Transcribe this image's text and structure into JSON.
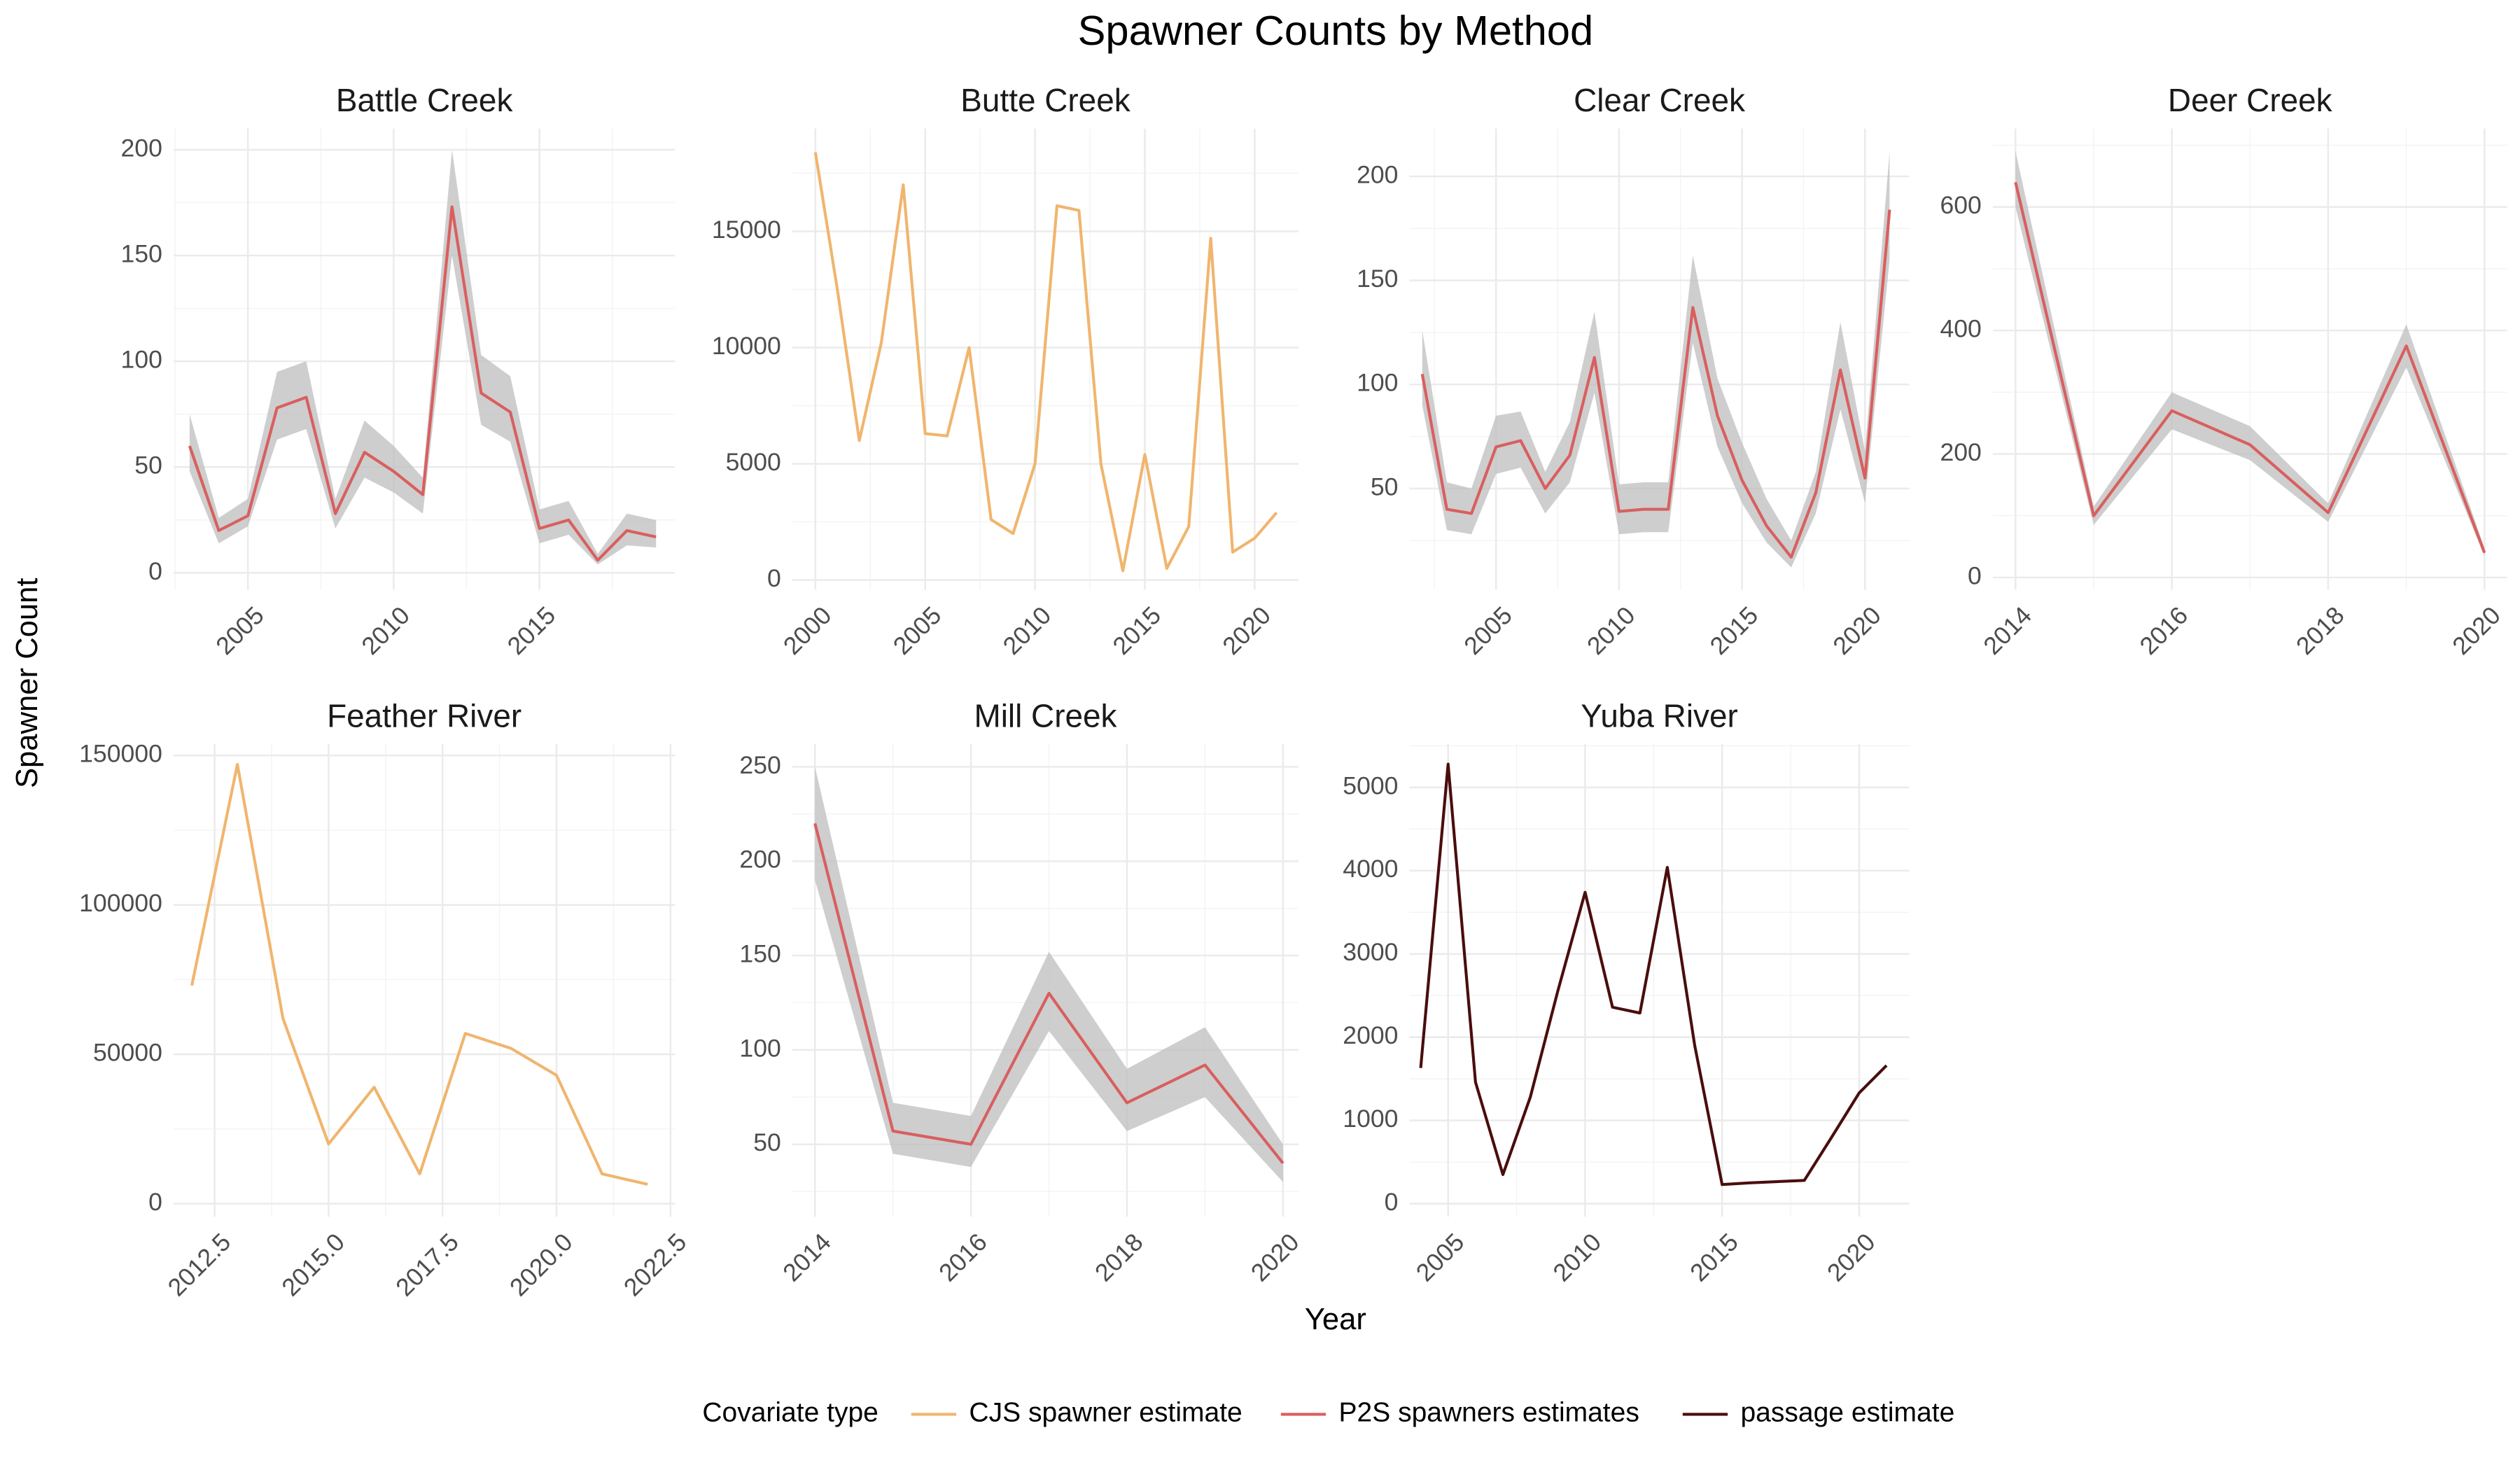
{
  "title": "Spawner Counts by Method",
  "x_label": "Year",
  "y_label": "Spawner Count",
  "legend": {
    "title": "Covariate type",
    "items": [
      {
        "name": "CJS spawner estimate",
        "color": "#f0b56e"
      },
      {
        "name": "P2S spawners estimates",
        "color": "#d95f5f"
      },
      {
        "name": "passage estimate",
        "color": "#4a0d0d"
      }
    ]
  },
  "chart_data": [
    {
      "type": "line",
      "title": "Battle Creek",
      "x": [
        2003,
        2004,
        2005,
        2006,
        2007,
        2008,
        2009,
        2010,
        2011,
        2012,
        2013,
        2014,
        2015,
        2016,
        2017,
        2018,
        2019
      ],
      "series": [
        {
          "name": "P2S spawners estimates",
          "color": "#d95f5f",
          "band_color": "#bdbdbd",
          "values": [
            60,
            20,
            27,
            78,
            83,
            28,
            57,
            48,
            37,
            173,
            85,
            76,
            21,
            25,
            6,
            20,
            17
          ],
          "lower": [
            48,
            14,
            22,
            63,
            68,
            21,
            45,
            38,
            28,
            150,
            70,
            62,
            14,
            18,
            4,
            13,
            12
          ],
          "upper": [
            75,
            26,
            35,
            95,
            100,
            35,
            72,
            60,
            45,
            200,
            103,
            93,
            30,
            34,
            9,
            28,
            25
          ]
        }
      ],
      "xlim": [
        2002.45,
        2019.65
      ],
      "ylim": [
        -8,
        210
      ],
      "xticks": [
        2005,
        2010,
        2015
      ],
      "yticks": [
        0,
        50,
        100,
        150,
        200
      ]
    },
    {
      "type": "line",
      "title": "Butte Creek",
      "x": [
        2000,
        2001,
        2002,
        2003,
        2004,
        2005,
        2006,
        2007,
        2008,
        2009,
        2010,
        2011,
        2012,
        2013,
        2014,
        2015,
        2016,
        2017,
        2018,
        2019,
        2020,
        2021
      ],
      "series": [
        {
          "name": "CJS spawner estimate",
          "color": "#f0b56e",
          "values": [
            18400,
            12500,
            6000,
            10200,
            17000,
            6300,
            6200,
            10000,
            2600,
            2000,
            5000,
            16100,
            15900,
            5000,
            400,
            5400,
            500,
            2300,
            14700,
            1200,
            1800,
            2900
          ]
        }
      ],
      "xlim": [
        1998.95,
        2022
      ],
      "ylim": [
        -420,
        19420
      ],
      "xticks": [
        2000,
        2005,
        2010,
        2015,
        2020
      ],
      "yticks": [
        0,
        5000,
        10000,
        15000
      ]
    },
    {
      "type": "line",
      "title": "Clear Creek",
      "x": [
        2002,
        2003,
        2004,
        2005,
        2006,
        2007,
        2008,
        2009,
        2010,
        2011,
        2012,
        2013,
        2014,
        2015,
        2016,
        2017,
        2018,
        2019,
        2020,
        2021
      ],
      "series": [
        {
          "name": "P2S spawners estimates",
          "color": "#d95f5f",
          "band_color": "#bdbdbd",
          "values": [
            105,
            40,
            38,
            70,
            73,
            50,
            66,
            113,
            39,
            40,
            40,
            137,
            85,
            54,
            32,
            17,
            48,
            107,
            55,
            184
          ],
          "lower": [
            90,
            30,
            28,
            57,
            60,
            38,
            53,
            96,
            28,
            29,
            29,
            120,
            70,
            43,
            24,
            12,
            38,
            88,
            43,
            160
          ],
          "upper": [
            126,
            53,
            50,
            85,
            87,
            58,
            82,
            135,
            52,
            53,
            53,
            162,
            103,
            72,
            45,
            25,
            58,
            130,
            68,
            212
          ]
        }
      ],
      "xlim": [
        2001.48,
        2021.8
      ],
      "ylim": [
        1.3,
        223
      ],
      "xticks": [
        2005,
        2010,
        2015,
        2020
      ],
      "yticks": [
        50,
        100,
        150,
        200
      ]
    },
    {
      "type": "line",
      "title": "Deer Creek",
      "x": [
        2014,
        2015,
        2016,
        2017,
        2018,
        2019,
        2020
      ],
      "series": [
        {
          "name": "P2S spawners estimates",
          "color": "#d95f5f",
          "band_color": "#bdbdbd",
          "values": [
            640,
            100,
            270,
            215,
            105,
            375,
            40
          ],
          "lower": [
            600,
            85,
            240,
            190,
            90,
            340,
            35
          ],
          "upper": [
            690,
            115,
            300,
            245,
            120,
            410,
            48
          ]
        }
      ],
      "xlim": [
        2013.71,
        2020.29
      ],
      "ylim": [
        -20,
        727
      ],
      "xticks": [
        2014,
        2016,
        2018,
        2020
      ],
      "yticks": [
        0,
        200,
        400,
        600
      ]
    },
    {
      "type": "line",
      "title": "Feather River",
      "x": [
        2012,
        2013,
        2014,
        2015,
        2016,
        2017,
        2018,
        2019,
        2020,
        2021,
        2022
      ],
      "series": [
        {
          "name": "CJS spawner estimate",
          "color": "#f0b56e",
          "values": [
            73000,
            147000,
            62000,
            20000,
            39000,
            10000,
            57000,
            52000,
            43000,
            10000,
            6500
          ]
        }
      ],
      "xlim": [
        2011.6,
        2022.6
      ],
      "ylim": [
        -4300,
        153800
      ],
      "xticks": [
        2012.5,
        {
          "value": 2015,
          "label": "2015.0"
        },
        2017.5,
        {
          "value": 2020,
          "label": "2020.0"
        },
        2022.5
      ],
      "yticks": [
        0,
        50000,
        100000,
        150000
      ]
    },
    {
      "type": "line",
      "title": "Mill Creek",
      "x": [
        2014,
        2015,
        2016,
        2017,
        2018,
        2019,
        2020
      ],
      "series": [
        {
          "name": "P2S spawners estimates",
          "color": "#d95f5f",
          "band_color": "#bdbdbd",
          "values": [
            220,
            57,
            50,
            130,
            72,
            92,
            40
          ],
          "lower": [
            190,
            45,
            38,
            110,
            57,
            75,
            30
          ],
          "upper": [
            250,
            72,
            65,
            152,
            90,
            112,
            50
          ]
        }
      ],
      "xlim": [
        2013.71,
        2020.2
      ],
      "ylim": [
        11.7,
        262
      ],
      "xticks": [
        2014,
        2016,
        2018,
        2020
      ],
      "yticks": [
        50,
        100,
        150,
        200,
        250
      ]
    },
    {
      "type": "line",
      "title": "Yuba River",
      "x": [
        2004,
        2005,
        2006,
        2007,
        2008,
        2009,
        2010,
        2011,
        2012,
        2013,
        2014,
        2015,
        2016,
        2017,
        2018,
        2019,
        2020,
        2021
      ],
      "series": [
        {
          "name": "passage estimate",
          "color": "#4a0d0d",
          "values": [
            1630,
            5280,
            1460,
            350,
            1280,
            2550,
            3740,
            2360,
            2290,
            4040,
            1900,
            230,
            250,
            265,
            280,
            800,
            1330,
            1660
          ]
        }
      ],
      "xlim": [
        2003.59,
        2021.83
      ],
      "ylim": [
        -155,
        5520
      ],
      "xticks": [
        2005,
        2010,
        2015,
        2020
      ],
      "yticks": [
        0,
        1000,
        2000,
        3000,
        4000,
        5000
      ]
    }
  ]
}
